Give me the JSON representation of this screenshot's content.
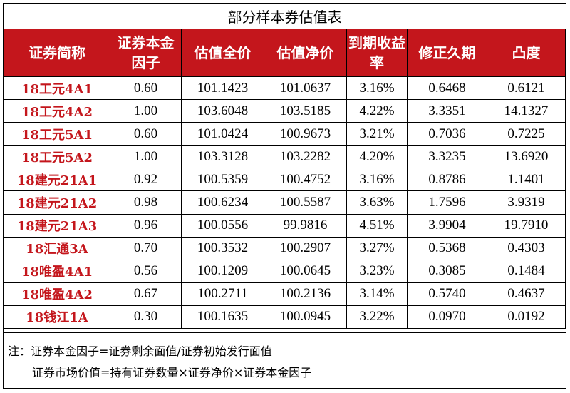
{
  "title": "部分样本券估值表",
  "headers": [
    "证券简称",
    "证券本金因子",
    "估值全价",
    "估值净价",
    "到期收益率",
    "修正久期",
    "凸度"
  ],
  "rows": [
    [
      "18工元4A1",
      "0.60",
      "101.1423",
      "101.0637",
      "3.16%",
      "0.6468",
      "0.6121"
    ],
    [
      "18工元4A2",
      "1.00",
      "103.6048",
      "103.5185",
      "4.22%",
      "3.3351",
      "14.1327"
    ],
    [
      "18工元5A1",
      "0.60",
      "101.0424",
      "100.9673",
      "3.21%",
      "0.7036",
      "0.7225"
    ],
    [
      "18工元5A2",
      "1.00",
      "103.3128",
      "103.2282",
      "4.20%",
      "3.3235",
      "13.6920"
    ],
    [
      "18建元21A1",
      "0.92",
      "100.5359",
      "100.4752",
      "3.16%",
      "0.8786",
      "1.1401"
    ],
    [
      "18建元21A2",
      "0.98",
      "100.6234",
      "100.5587",
      "3.63%",
      "1.7596",
      "3.9319"
    ],
    [
      "18建元21A3",
      "0.96",
      "100.0556",
      "99.9816",
      "4.51%",
      "3.9904",
      "19.7910"
    ],
    [
      "18汇通3A",
      "0.70",
      "100.3532",
      "100.2907",
      "3.27%",
      "0.5368",
      "0.4303"
    ],
    [
      "18唯盈4A1",
      "0.56",
      "100.1209",
      "100.0645",
      "3.23%",
      "0.3085",
      "0.1484"
    ],
    [
      "18唯盈4A2",
      "0.67",
      "100.2711",
      "100.2136",
      "3.14%",
      "0.5740",
      "0.4637"
    ],
    [
      "18钱江1A",
      "0.30",
      "100.1635",
      "100.0945",
      "3.22%",
      "0.0970",
      "0.0192"
    ]
  ],
  "notes": {
    "line1": "注：证券本金因子=证券剩余面值/证券初始发行面值",
    "line2": "证券市场价值=持有证券数量×证券净价×证券本金因子"
  },
  "colors": {
    "header_bg": "#c4161c",
    "header_text": "#ffffff",
    "name_text": "#c4161c"
  }
}
